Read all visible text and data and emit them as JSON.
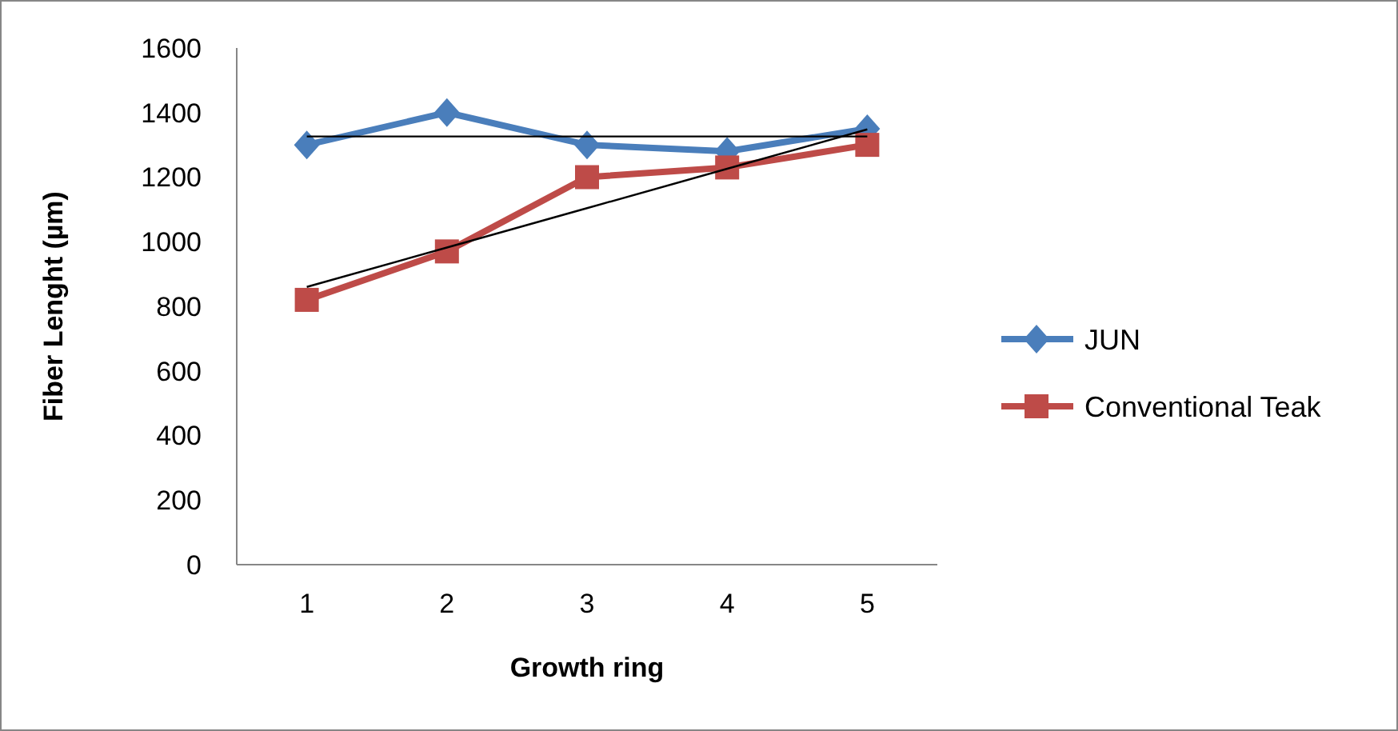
{
  "chart_data": {
    "type": "line",
    "xlabel": "Growth ring",
    "ylabel": "Fiber Lenght (µm)",
    "x": [
      1,
      2,
      3,
      4,
      5
    ],
    "xlim": [
      0.5,
      5.5
    ],
    "xticks": [
      1,
      2,
      3,
      4,
      5
    ],
    "ylim": [
      0,
      1600
    ],
    "yticks": [
      0,
      200,
      400,
      600,
      800,
      1000,
      1200,
      1400,
      1600
    ],
    "grid": false,
    "legend": "right",
    "series": [
      {
        "name": "JUN",
        "color": "#4a7ebb",
        "marker": "diamond",
        "values": [
          1300,
          1400,
          1300,
          1280,
          1350
        ]
      },
      {
        "name": "Conventional Teak",
        "color": "#be4b48",
        "marker": "square",
        "values": [
          820,
          970,
          1200,
          1230,
          1300
        ]
      },
      {
        "type": "line",
        "color": "#000000",
        "marker": "none",
        "values": [
          1326,
          1326,
          1326,
          1326,
          1326
        ]
      },
      {
        "type": "line",
        "color": "#000000",
        "marker": "none",
        "values": [
          860,
          982,
          1104,
          1226,
          1348
        ]
      }
    ]
  }
}
